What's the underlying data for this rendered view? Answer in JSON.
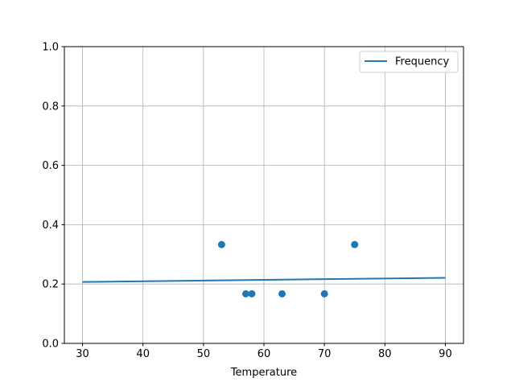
{
  "chart_data": {
    "type": "scatter+line",
    "title": "",
    "xlabel": "Temperature",
    "ylabel": "",
    "xlim": [
      27,
      93
    ],
    "ylim": [
      0,
      1
    ],
    "xticks": [
      "30",
      "40",
      "50",
      "60",
      "70",
      "80",
      "90"
    ],
    "yticks": [
      "0.0",
      "0.2",
      "0.4",
      "0.6",
      "0.8",
      "1.0"
    ],
    "grid": true,
    "legend": {
      "placement": "top-right",
      "entries": [
        "Frequency"
      ]
    },
    "color": "#1f77b4",
    "series": [
      {
        "name": "Frequency",
        "type": "line",
        "x": [
          30,
          90
        ],
        "y": [
          0.207,
          0.221
        ]
      },
      {
        "type": "scatter",
        "x": [
          53,
          57,
          58,
          63,
          70,
          75
        ],
        "y": [
          0.333,
          0.167,
          0.167,
          0.167,
          0.167,
          0.333
        ]
      }
    ]
  }
}
